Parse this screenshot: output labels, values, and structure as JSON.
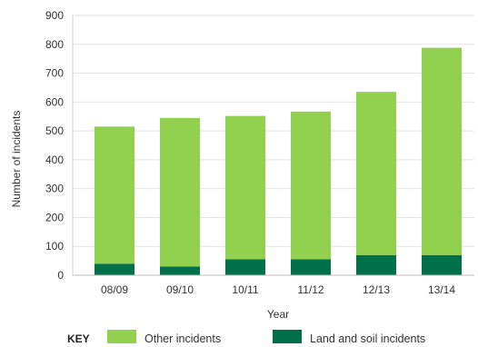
{
  "chart_data": {
    "type": "bar",
    "stacked": true,
    "categories": [
      "08/09",
      "09/10",
      "10/11",
      "11/12",
      "12/13",
      "13/14"
    ],
    "series": [
      {
        "name": "Land and soil incidents",
        "values": [
          40,
          30,
          55,
          55,
          70,
          70
        ]
      },
      {
        "name": "Other incidents",
        "values": [
          475,
          515,
          497,
          512,
          565,
          718
        ]
      }
    ],
    "xlabel": "Year",
    "ylabel": "Number of incidents",
    "ylim": [
      0,
      900
    ],
    "yticks": [
      0,
      100,
      200,
      300,
      400,
      500,
      600,
      700,
      800,
      900
    ],
    "grid": true,
    "legend_title": "KEY",
    "legend_position": "bottom",
    "colors": {
      "other": "#92d050",
      "land": "#00704a",
      "grid": "#e2e2e2"
    }
  }
}
